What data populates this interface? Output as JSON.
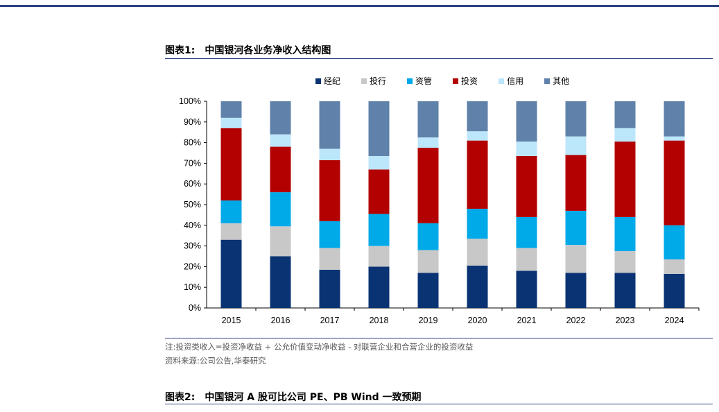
{
  "figure1": {
    "label": "图表1:",
    "title": "中国银河各业务净收入结构图"
  },
  "figure2": {
    "label": "图表2:",
    "title": "中国银河 A 股可比公司 PE、PB Wind 一致预期"
  },
  "notes": {
    "note": "注:投资类收入=投资净收益 + 公允价值变动净收益 - 对联营企业和合营企业的投资收益",
    "source": "资料来源:公司公告,华泰研究"
  },
  "chart_data": {
    "type": "bar",
    "stacked": true,
    "categories": [
      "2015",
      "2016",
      "2017",
      "2018",
      "2019",
      "2020",
      "2021",
      "2022",
      "2023",
      "2024"
    ],
    "y_ticks": [
      "0%",
      "10%",
      "20%",
      "30%",
      "40%",
      "50%",
      "60%",
      "70%",
      "80%",
      "90%",
      "100%"
    ],
    "ylim": [
      0,
      100
    ],
    "legend_position": "top",
    "grid": false,
    "series": [
      {
        "name": "经纪",
        "color": "#0a3373",
        "values": [
          33,
          25,
          18.5,
          20,
          17,
          20.5,
          18,
          17,
          17,
          16.5
        ]
      },
      {
        "name": "投行",
        "color": "#c8c8c8",
        "values": [
          8,
          14.5,
          10.5,
          10,
          11,
          13,
          11,
          13.5,
          10.5,
          7
        ]
      },
      {
        "name": "资管",
        "color": "#00a9e8",
        "values": [
          11,
          16.5,
          13,
          15.5,
          13,
          14.5,
          15,
          16.5,
          16.5,
          16.5
        ]
      },
      {
        "name": "投资",
        "color": "#b30000",
        "values": [
          35,
          22,
          29.5,
          21.5,
          36.5,
          33,
          29.5,
          27,
          36.5,
          41
        ]
      },
      {
        "name": "信用",
        "color": "#bce6fa",
        "values": [
          5,
          6,
          5.5,
          6.5,
          5,
          4.5,
          7,
          9,
          6.5,
          2
        ]
      },
      {
        "name": "其他",
        "color": "#5f81aa",
        "values": [
          8,
          16,
          23,
          26.5,
          17.5,
          14.5,
          19.5,
          17,
          13,
          17
        ]
      }
    ]
  }
}
